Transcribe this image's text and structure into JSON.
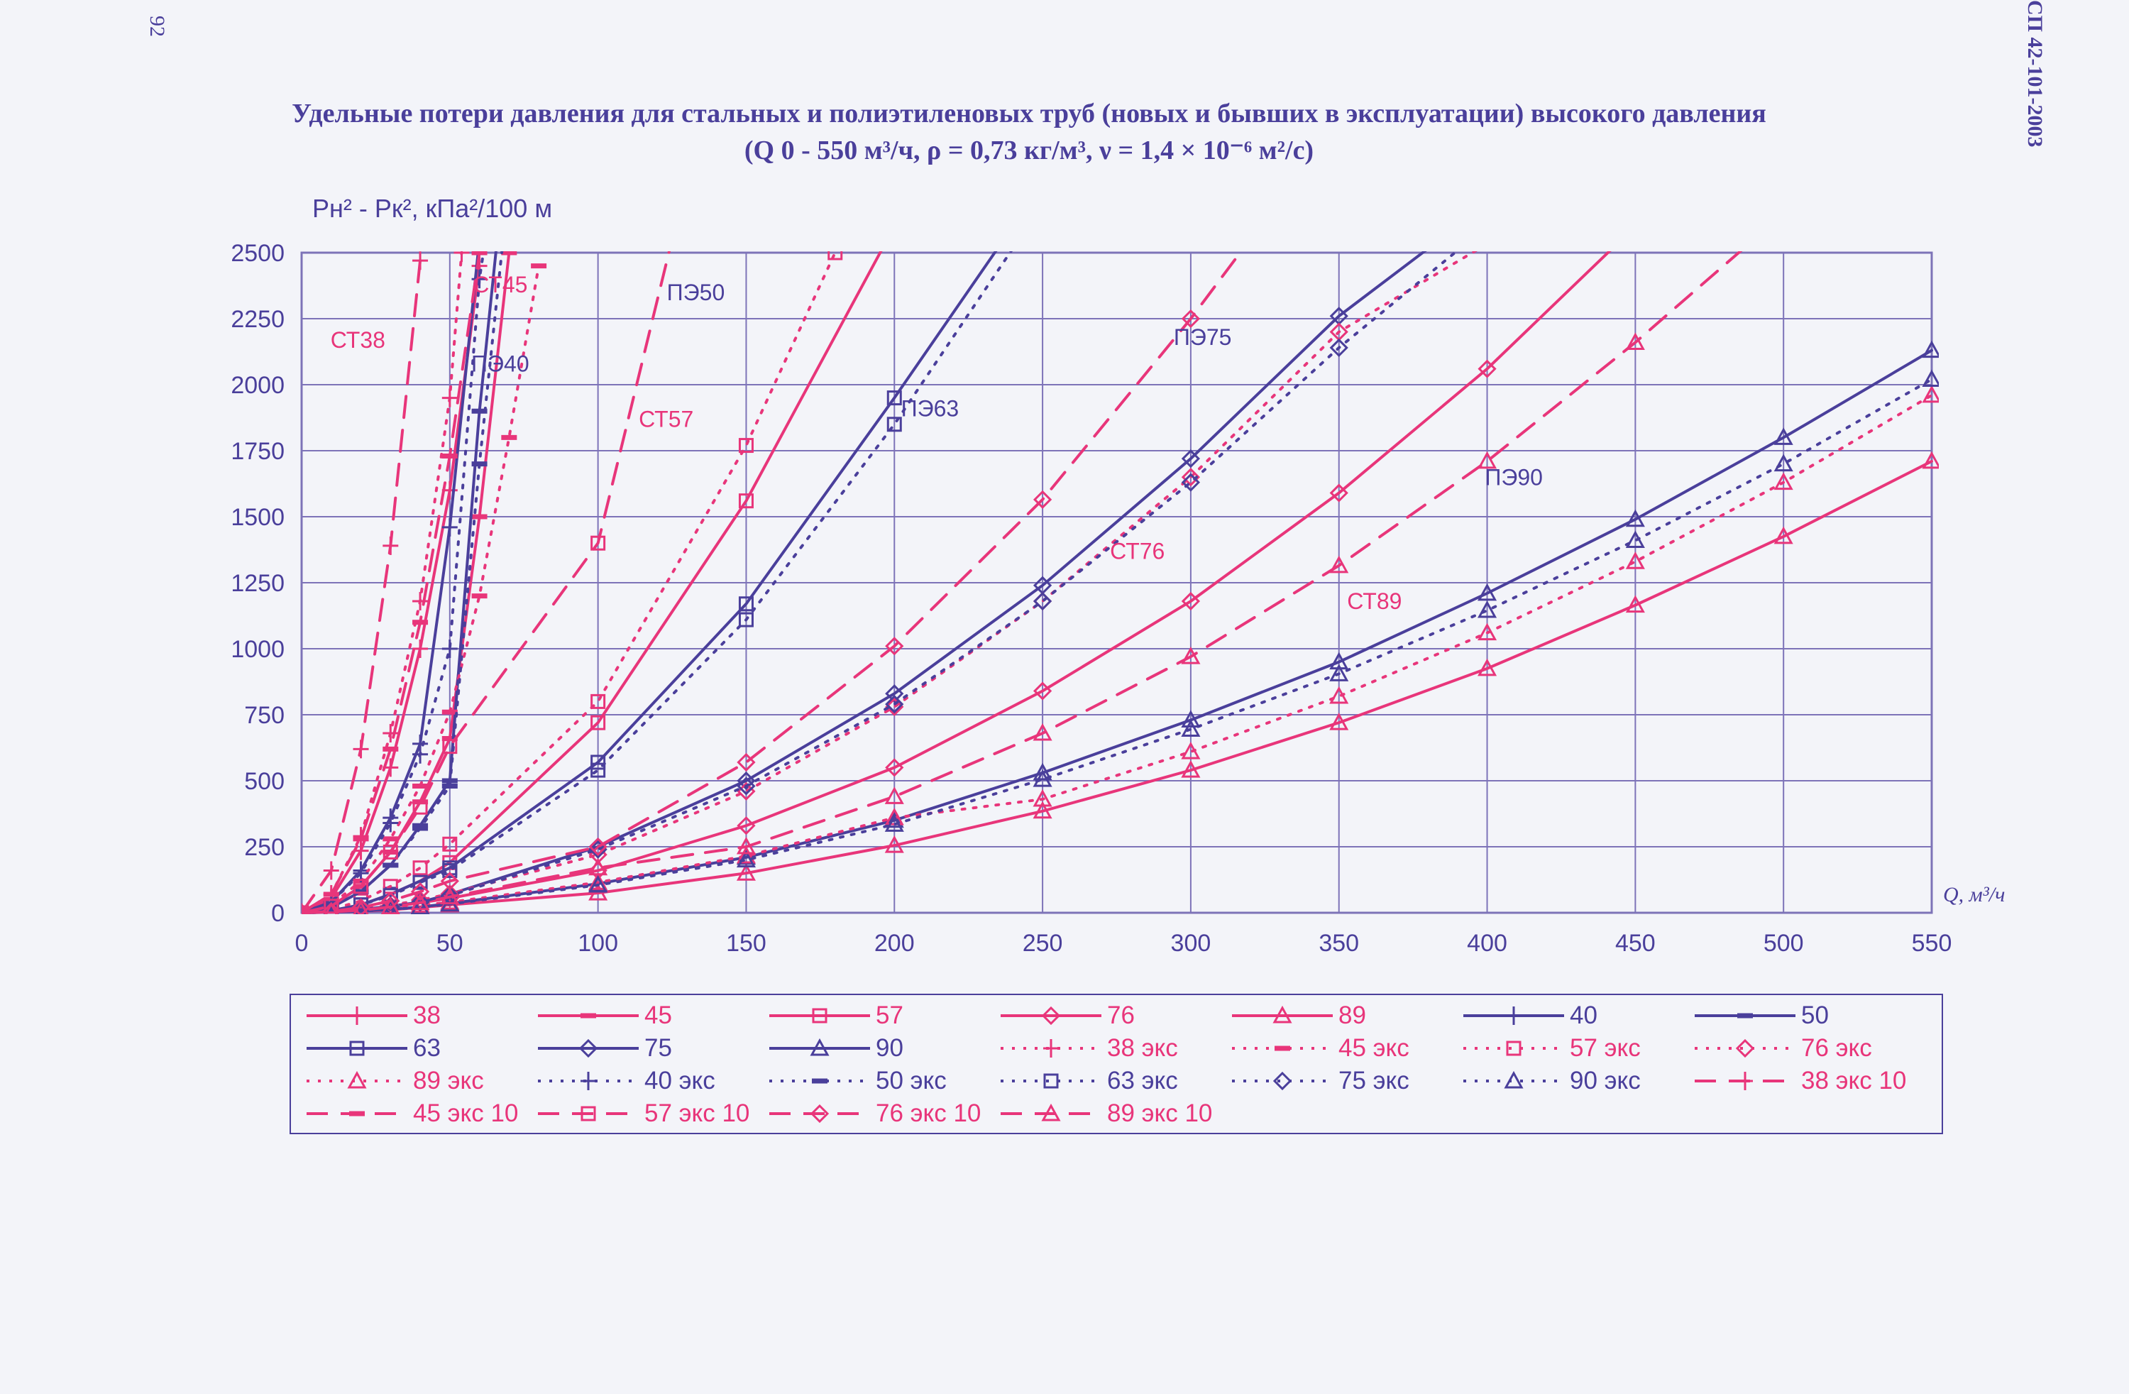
{
  "page": {
    "page_number": "92",
    "doc_code": "СП 42-101-2003"
  },
  "colors": {
    "steel": "#e8357a",
    "pe": "#4a3f9b",
    "grid": "#7d73b8"
  },
  "chart_data": {
    "type": "line",
    "title": "Удельные потери давления для стальных и полиэтиленовых труб (новых и бывших в эксплуатации) высокого давления",
    "subtitle": "(Q 0 - 550 м³/ч, ρ = 0,73 кг/м³, ν = 1,4 × 10⁻⁶ м²/с)",
    "ylabel": "Pн² - Pк², кПа²/100 м",
    "xlabel": "Q, м³/ч",
    "xlim": [
      0,
      550
    ],
    "ylim": [
      0,
      2500
    ],
    "x_ticks": [
      "0",
      "50",
      "100",
      "150",
      "200",
      "250",
      "300",
      "350",
      "400",
      "450",
      "500",
      "550"
    ],
    "y_ticks": [
      "0",
      "250",
      "500",
      "750",
      "1000",
      "1250",
      "1500",
      "1750",
      "2000",
      "2250",
      "2500"
    ],
    "grid": true,
    "legend_position": "bottom",
    "annotations": [
      {
        "text": "СТ38",
        "x": 19,
        "y": 2140,
        "group": "steel"
      },
      {
        "text": "СТ45",
        "x": 67,
        "y": 2350,
        "group": "steel"
      },
      {
        "text": "ПЭ40",
        "x": 67,
        "y": 2050,
        "group": "pe"
      },
      {
        "text": "ПЭ50",
        "x": 133,
        "y": 2320,
        "group": "pe"
      },
      {
        "text": "СТ57",
        "x": 123,
        "y": 1840,
        "group": "steel"
      },
      {
        "text": "ПЭ63",
        "x": 212,
        "y": 1880,
        "group": "pe"
      },
      {
        "text": "ПЭ75",
        "x": 304,
        "y": 2150,
        "group": "pe"
      },
      {
        "text": "СТ76",
        "x": 282,
        "y": 1340,
        "group": "steel"
      },
      {
        "text": "ПЭ90",
        "x": 409,
        "y": 1620,
        "group": "pe"
      },
      {
        "text": "СТ89",
        "x": 362,
        "y": 1150,
        "group": "steel"
      }
    ],
    "series": [
      {
        "name": "38",
        "group": "steel",
        "dash": "solid",
        "marker": "plus",
        "x": [
          0,
          10,
          20,
          30,
          40,
          50,
          60
        ],
        "y": [
          0,
          55,
          235,
          550,
          1000,
          1600,
          2450
        ]
      },
      {
        "name": "45",
        "group": "steel",
        "dash": "solid",
        "marker": "dash",
        "x": [
          0,
          10,
          20,
          30,
          40,
          50,
          60,
          70
        ],
        "y": [
          0,
          25,
          100,
          230,
          420,
          660,
          1500,
          2500
        ]
      },
      {
        "name": "57",
        "group": "steel",
        "dash": "solid",
        "marker": "square",
        "x": [
          0,
          10,
          20,
          30,
          40,
          50,
          100,
          150,
          200
        ],
        "y": [
          0,
          8,
          30,
          70,
          120,
          190,
          720,
          1560,
          2600
        ]
      },
      {
        "name": "76",
        "group": "steel",
        "dash": "solid",
        "marker": "diamond",
        "x": [
          0,
          10,
          20,
          30,
          40,
          50,
          100,
          150,
          200,
          250,
          300,
          350,
          400,
          450
        ],
        "y": [
          0,
          3,
          10,
          22,
          38,
          55,
          160,
          330,
          550,
          840,
          1180,
          1590,
          2060,
          2600
        ]
      },
      {
        "name": "89",
        "group": "steel",
        "dash": "solid",
        "marker": "triangle",
        "x": [
          0,
          10,
          20,
          30,
          40,
          50,
          100,
          150,
          200,
          250,
          300,
          350,
          400,
          450,
          500,
          550
        ],
        "y": [
          0,
          2,
          5,
          11,
          20,
          30,
          75,
          150,
          255,
          385,
          540,
          720,
          925,
          1165,
          1425,
          1710
        ]
      },
      {
        "name": "40",
        "group": "pe",
        "dash": "solid",
        "marker": "plus",
        "x": [
          0,
          10,
          20,
          30,
          40,
          50,
          60
        ],
        "y": [
          0,
          40,
          160,
          360,
          640,
          1460,
          2550
        ]
      },
      {
        "name": "50",
        "group": "pe",
        "dash": "solid",
        "marker": "dash",
        "x": [
          0,
          10,
          20,
          30,
          40,
          50,
          60,
          66
        ],
        "y": [
          0,
          20,
          80,
          180,
          330,
          500,
          1900,
          2550
        ]
      },
      {
        "name": "63",
        "group": "pe",
        "dash": "solid",
        "marker": "square",
        "x": [
          0,
          10,
          20,
          30,
          40,
          50,
          100,
          150,
          200,
          240
        ],
        "y": [
          0,
          8,
          30,
          70,
          120,
          170,
          570,
          1170,
          1950,
          2600
        ]
      },
      {
        "name": "75",
        "group": "pe",
        "dash": "solid",
        "marker": "diamond",
        "x": [
          0,
          10,
          20,
          30,
          40,
          50,
          100,
          150,
          200,
          250,
          300,
          350,
          390
        ],
        "y": [
          0,
          4,
          12,
          25,
          40,
          70,
          250,
          500,
          830,
          1240,
          1720,
          2260,
          2600
        ]
      },
      {
        "name": "90",
        "group": "pe",
        "dash": "solid",
        "marker": "triangle",
        "x": [
          0,
          10,
          20,
          30,
          40,
          50,
          100,
          150,
          200,
          250,
          300,
          350,
          400,
          450,
          500,
          550
        ],
        "y": [
          0,
          2,
          6,
          13,
          22,
          35,
          110,
          210,
          350,
          530,
          730,
          950,
          1210,
          1490,
          1800,
          2130
        ]
      },
      {
        "name": "38 экс",
        "group": "steel",
        "dash": "dot",
        "marker": "plus",
        "x": [
          0,
          10,
          20,
          30,
          40,
          50,
          54
        ],
        "y": [
          0,
          70,
          290,
          680,
          1180,
          1950,
          2500
        ]
      },
      {
        "name": "45 экс",
        "group": "steel",
        "dash": "dot",
        "marker": "dash",
        "x": [
          0,
          10,
          20,
          30,
          40,
          50,
          60,
          70,
          80
        ],
        "y": [
          0,
          30,
          120,
          280,
          480,
          760,
          1200,
          1800,
          2450
        ]
      },
      {
        "name": "57 экс",
        "group": "steel",
        "dash": "dot",
        "marker": "square",
        "x": [
          0,
          10,
          20,
          30,
          40,
          50,
          100,
          150,
          180
        ],
        "y": [
          0,
          12,
          45,
          100,
          170,
          260,
          800,
          1770,
          2500
        ]
      },
      {
        "name": "76 экс",
        "group": "steel",
        "dash": "dot",
        "marker": "diamond",
        "x": [
          0,
          10,
          20,
          30,
          40,
          50,
          100,
          150,
          200,
          250,
          300,
          350,
          410
        ],
        "y": [
          0,
          4,
          14,
          28,
          48,
          72,
          220,
          460,
          780,
          1180,
          1650,
          2200,
          2600
        ]
      },
      {
        "name": "89 экс",
        "group": "steel",
        "dash": "dot",
        "marker": "triangle",
        "x": [
          0,
          10,
          20,
          30,
          40,
          50,
          100,
          150,
          200,
          250,
          300,
          350,
          400,
          450,
          500,
          550
        ],
        "y": [
          0,
          3,
          8,
          17,
          28,
          40,
          115,
          215,
          360,
          430,
          610,
          820,
          1060,
          1330,
          1630,
          1960
        ]
      },
      {
        "name": "40 экс",
        "group": "pe",
        "dash": "dot",
        "marker": "plus",
        "x": [
          0,
          10,
          20,
          30,
          40,
          50,
          60,
          62
        ],
        "y": [
          0,
          40,
          150,
          340,
          600,
          1000,
          2400,
          2550
        ]
      },
      {
        "name": "50 экс",
        "group": "pe",
        "dash": "dot",
        "marker": "dash",
        "x": [
          0,
          10,
          20,
          30,
          40,
          50,
          60,
          68
        ],
        "y": [
          0,
          20,
          80,
          180,
          320,
          480,
          1700,
          2550
        ]
      },
      {
        "name": "63 экс",
        "group": "pe",
        "dash": "dot",
        "marker": "square",
        "x": [
          0,
          10,
          20,
          30,
          40,
          50,
          100,
          150,
          200,
          245
        ],
        "y": [
          0,
          8,
          30,
          65,
          115,
          160,
          540,
          1110,
          1850,
          2600
        ]
      },
      {
        "name": "75 экс",
        "group": "pe",
        "dash": "dot",
        "marker": "diamond",
        "x": [
          0,
          10,
          20,
          30,
          40,
          50,
          100,
          150,
          200,
          250,
          300,
          350,
          400
        ],
        "y": [
          0,
          4,
          12,
          24,
          40,
          65,
          240,
          480,
          790,
          1180,
          1630,
          2140,
          2600
        ]
      },
      {
        "name": "90 экс",
        "group": "pe",
        "dash": "dot",
        "marker": "triangle",
        "x": [
          0,
          10,
          20,
          30,
          40,
          50,
          100,
          150,
          200,
          250,
          300,
          350,
          400,
          450,
          500,
          550
        ],
        "y": [
          0,
          2,
          6,
          12,
          21,
          33,
          105,
          200,
          335,
          505,
          695,
          905,
          1145,
          1410,
          1700,
          2020
        ]
      },
      {
        "name": "38 экс 10",
        "group": "steel",
        "dash": "dash",
        "marker": "plus",
        "x": [
          0,
          10,
          20,
          30,
          40,
          42
        ],
        "y": [
          0,
          160,
          620,
          1390,
          2470,
          2550
        ]
      },
      {
        "name": "45 экс 10",
        "group": "steel",
        "dash": "dash",
        "marker": "dash",
        "x": [
          0,
          10,
          20,
          30,
          40,
          50,
          60,
          65
        ],
        "y": [
          0,
          70,
          280,
          620,
          1100,
          1730,
          2500,
          2550
        ]
      },
      {
        "name": "57 экс 10",
        "group": "steel",
        "dash": "dash",
        "marker": "square",
        "x": [
          0,
          10,
          20,
          30,
          40,
          50,
          100,
          125
        ],
        "y": [
          0,
          25,
          100,
          230,
          400,
          630,
          1400,
          2550
        ]
      },
      {
        "name": "76 экс 10",
        "group": "steel",
        "dash": "dash",
        "marker": "diamond",
        "x": [
          0,
          10,
          20,
          30,
          40,
          50,
          100,
          150,
          200,
          250,
          300,
          320
        ],
        "y": [
          0,
          5,
          20,
          45,
          80,
          120,
          250,
          570,
          1010,
          1565,
          2250,
          2550
        ]
      },
      {
        "name": "89 экс 10",
        "group": "steel",
        "dash": "dash",
        "marker": "triangle",
        "x": [
          0,
          10,
          20,
          30,
          40,
          50,
          100,
          150,
          200,
          250,
          300,
          350,
          400,
          450,
          490
        ],
        "y": [
          0,
          3,
          10,
          22,
          38,
          60,
          170,
          250,
          440,
          680,
          970,
          1315,
          1710,
          2160,
          2550
        ]
      }
    ]
  }
}
